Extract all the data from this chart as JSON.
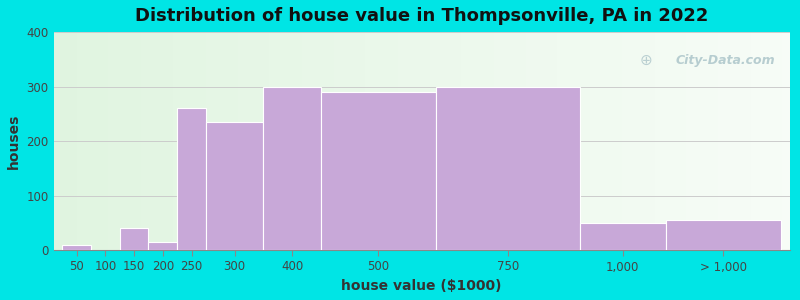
{
  "title": "Distribution of house value in Thompsonville, PA in 2022",
  "xlabel": "house value ($1000)",
  "ylabel": "houses",
  "bar_color": "#c8a8d8",
  "bar_edgecolor": "#c8a8d8",
  "background_outer": "#00e5e5",
  "ylim": [
    0,
    400
  ],
  "yticks": [
    0,
    100,
    200,
    300,
    400
  ],
  "categories": [
    "50",
    "100",
    "150",
    "200",
    "250",
    "300",
    "400",
    "500",
    "750",
    "1,000",
    "> 1,000"
  ],
  "values": [
    10,
    0,
    40,
    15,
    260,
    235,
    300,
    290,
    300,
    50,
    55
  ],
  "edges": [
    0,
    1,
    2,
    3,
    4,
    5,
    7,
    9,
    13,
    18,
    21,
    25
  ],
  "watermark_text": "City-Data.com",
  "grid_color": "#cccccc",
  "title_fontsize": 13,
  "label_fontsize": 10,
  "tick_fontsize": 8.5,
  "bg_color_topleft": "#d8eec8",
  "bg_color_topright": "#f0f4f0",
  "bg_color_bottomleft": "#e8f4d8",
  "bg_color_bottomright": "#f8faf8"
}
